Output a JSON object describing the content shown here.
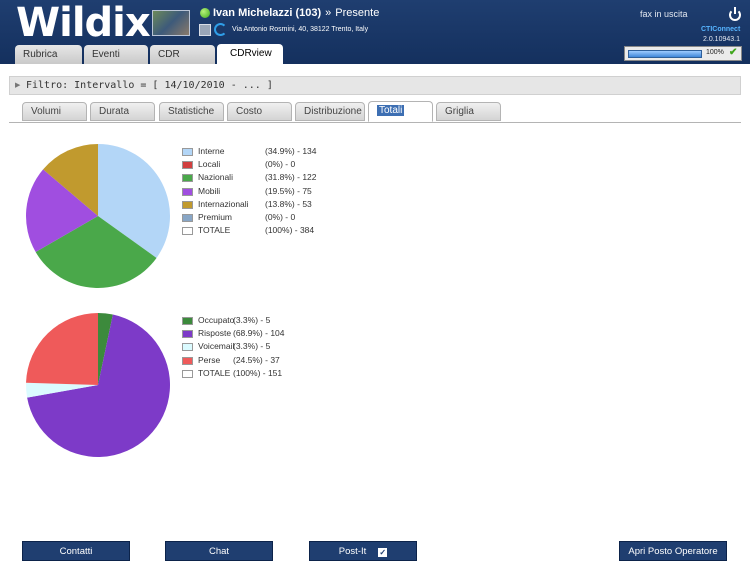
{
  "app": {
    "logo": "Wildix"
  },
  "user": {
    "name": "Ivan Michelazzi",
    "extension": "(103)",
    "separator": "»",
    "status": "Presente",
    "address": "Via Antonio Rosmini, 40, 38122 Trento, Italy"
  },
  "header_right": {
    "fax_label": "fax in uscita",
    "product": "CTIConnect",
    "version": "2.0.10943.1"
  },
  "progress": {
    "label": "100%",
    "value": 100
  },
  "top_tabs": [
    "Rubrica",
    "Eventi",
    "CDR",
    "CDRview"
  ],
  "filter": {
    "text": "Filtro: Intervallo = [ 14/10/2010 - ... ]"
  },
  "sub_tabs": [
    "Volumi",
    "Durata",
    "Statistiche",
    "Costo",
    "Distribuzione",
    "Totali",
    "Griglia"
  ],
  "chart_data": [
    {
      "type": "pie",
      "slices": [
        {
          "label": "Interne",
          "pct": "(34.9%) - 134",
          "value": 134,
          "color": "#b3d6f7"
        },
        {
          "label": "Locali",
          "pct": "(0%) - 0",
          "value": 0,
          "color": "#d13f3f"
        },
        {
          "label": "Nazionali",
          "pct": "(31.8%) - 122",
          "value": 122,
          "color": "#4aa84a"
        },
        {
          "label": "Mobili",
          "pct": "(19.5%) - 75",
          "value": 75,
          "color": "#a04ee0"
        },
        {
          "label": "Internazionali",
          "pct": "(13.8%) - 53",
          "value": 53,
          "color": "#c19a2e"
        },
        {
          "label": "Premium",
          "pct": "(0%) - 0",
          "value": 0,
          "color": "#88a6c6"
        }
      ],
      "total": {
        "label": "TOTALE",
        "pct": "(100%) - 384",
        "value": 384,
        "color": "#ffffff"
      }
    },
    {
      "type": "pie",
      "slices": [
        {
          "label": "Occupato",
          "pct": "(3.3%) - 5",
          "value": 5,
          "color": "#3c8a3c"
        },
        {
          "label": "Risposte",
          "pct": "(68.9%) - 104",
          "value": 104,
          "color": "#7d3ac8"
        },
        {
          "label": "Voicemail",
          "pct": "(3.3%) - 5",
          "value": 5,
          "color": "#dbfbff"
        },
        {
          "label": "Perse",
          "pct": "(24.5%) - 37",
          "value": 37,
          "color": "#ef5a5a"
        }
      ],
      "total": {
        "label": "TOTALE",
        "pct": "(100%) - 151",
        "value": 151,
        "color": "#ffffff"
      }
    }
  ],
  "bottom_buttons": [
    "Contatti",
    "Chat",
    "Post-It",
    "Apri Posto Operatore"
  ],
  "postit_checkbox": "✓"
}
